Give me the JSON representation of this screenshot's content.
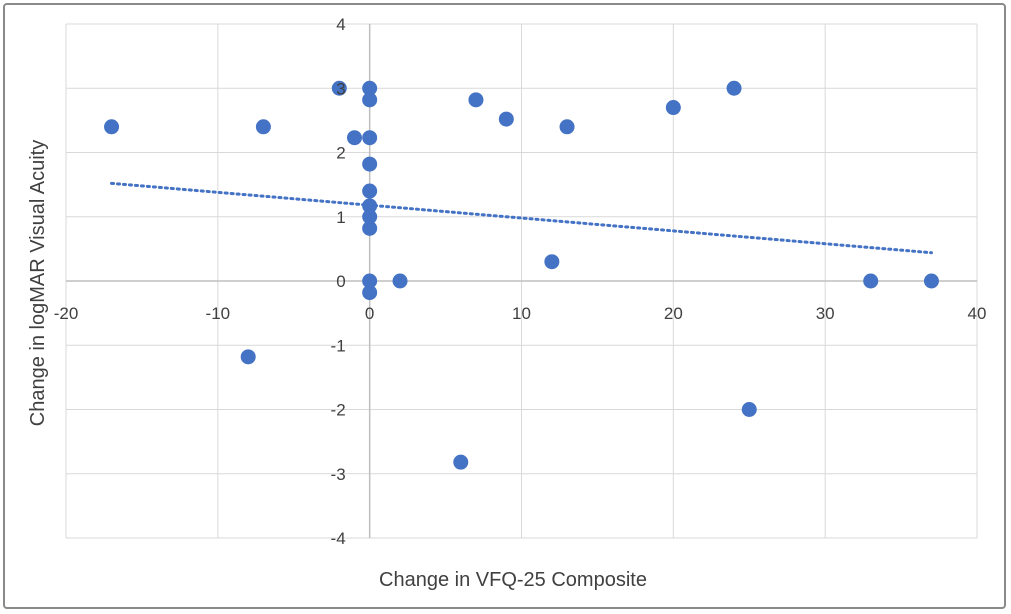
{
  "chart_data": {
    "type": "scatter",
    "title": "",
    "xlabel": "Change in VFQ-25 Composite",
    "ylabel": "Change in logMAR Visual Acuity",
    "xlim": [
      -20,
      40
    ],
    "ylim": [
      -4,
      4
    ],
    "x_ticks": [
      "-20",
      "-10",
      "0",
      "10",
      "20",
      "30",
      "40"
    ],
    "y_ticks": [
      "-4",
      "-3",
      "-2",
      "-1",
      "0",
      "1",
      "2",
      "3",
      "4"
    ],
    "x_tick_values": [
      -20,
      -10,
      0,
      10,
      20,
      30,
      40
    ],
    "y_tick_values": [
      -4,
      -3,
      -2,
      -1,
      0,
      1,
      2,
      3,
      4
    ],
    "grid": true,
    "legend": "none",
    "marker_color": "#4472C4",
    "trendline_color": "#4472C4",
    "trendline": {
      "style": "dotted",
      "x": [
        -17,
        37
      ],
      "y": [
        1.52,
        0.44
      ]
    },
    "points": [
      {
        "x": -17,
        "y": 2.4
      },
      {
        "x": -7,
        "y": 2.4
      },
      {
        "x": -2,
        "y": 3.0
      },
      {
        "x": -1,
        "y": 2.23
      },
      {
        "x": 0,
        "y": 3.0
      },
      {
        "x": 0,
        "y": 2.82
      },
      {
        "x": 0,
        "y": 2.23
      },
      {
        "x": 0,
        "y": 1.82
      },
      {
        "x": 0,
        "y": 1.4
      },
      {
        "x": 0,
        "y": 1.17
      },
      {
        "x": 0,
        "y": 1.0
      },
      {
        "x": 0,
        "y": 0.82
      },
      {
        "x": 0,
        "y": 0.0
      },
      {
        "x": 0,
        "y": -0.18
      },
      {
        "x": 2,
        "y": 0.0
      },
      {
        "x": 7,
        "y": 2.82
      },
      {
        "x": 9,
        "y": 2.52
      },
      {
        "x": 12,
        "y": 0.3
      },
      {
        "x": 13,
        "y": 2.4
      },
      {
        "x": 20,
        "y": 2.7
      },
      {
        "x": 24,
        "y": 3.0
      },
      {
        "x": 33,
        "y": 0.0
      },
      {
        "x": 37,
        "y": 0.0
      },
      {
        "x": -8,
        "y": -1.18
      },
      {
        "x": 6,
        "y": -2.82
      },
      {
        "x": 25,
        "y": -2.0
      }
    ]
  }
}
